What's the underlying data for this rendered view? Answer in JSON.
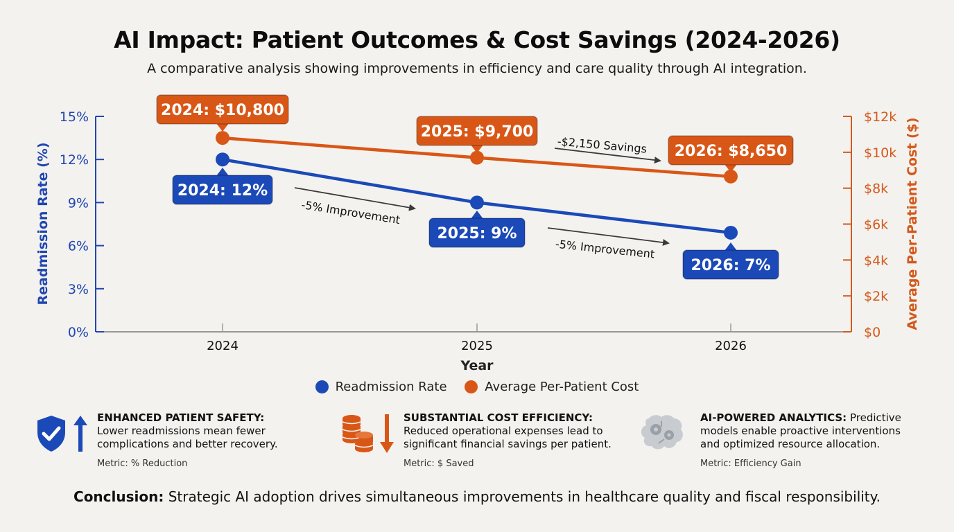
{
  "title": "AI Impact: Patient Outcomes & Cost Savings (2024-2026)",
  "subtitle": "A comparative analysis showing improvements in efficiency and care quality through AI integration.",
  "colors": {
    "blue": "#1b49b8",
    "orange": "#d95716",
    "axis_blue": "#2046b0",
    "axis_orange": "#d4581a"
  },
  "chart_data": {
    "type": "line",
    "x": [
      "2024",
      "2025",
      "2026"
    ],
    "xlabel": "Year",
    "y_left": {
      "label": "Readmission Rate (%)",
      "ticks": [
        "0%",
        "3%",
        "6%",
        "9%",
        "12%",
        "15%"
      ],
      "lim": [
        0,
        15
      ]
    },
    "y_right": {
      "label": "Average Per-Patient Cost ($)",
      "ticks": [
        "$0",
        "$2k",
        "$4k",
        "$6k",
        "$8k",
        "$10k",
        "$12k"
      ],
      "lim": [
        0,
        12000
      ]
    },
    "series": [
      {
        "name": "Readmission Rate",
        "axis": "left",
        "values": [
          12,
          9,
          6.9
        ],
        "labels": [
          "2024: 12%",
          "2025: 9%",
          "2026: 7%"
        ]
      },
      {
        "name": "Average Per-Patient Cost",
        "axis": "right",
        "values": [
          10800,
          9700,
          8650
        ],
        "labels": [
          "2024: $10,800",
          "2025: $9,700",
          "2026: $8,650"
        ]
      }
    ],
    "annotations": [
      "-5% Improvement",
      "-5% Improvement",
      "-$2,150 Savings"
    ],
    "grid": false,
    "legend": "bottom"
  },
  "cards": [
    {
      "head": "ENHANCED PATIENT SAFETY:",
      "body": "Lower readmissions mean fewer complications and better recovery.",
      "metric": "Metric: % Reduction",
      "icon": "shield-check-up-arrow-icon"
    },
    {
      "head": "SUBSTANTIAL COST EFFICIENCY:",
      "body": "Reduced operational expenses lead to significant financial savings per patient.",
      "metric": "Metric: $ Saved",
      "icon": "coins-down-arrow-icon"
    },
    {
      "head": "AI-POWERED ANALYTICS:",
      "body": "Predictive models enable proactive interventions and optimized resource allocation.",
      "metric": "Metric: Efficiency Gain",
      "icon": "brain-gears-icon"
    }
  ],
  "conclusion": {
    "label": "Conclusion:",
    "text": "Strategic AI adoption drives simultaneous improvements in healthcare quality and fiscal responsibility."
  }
}
